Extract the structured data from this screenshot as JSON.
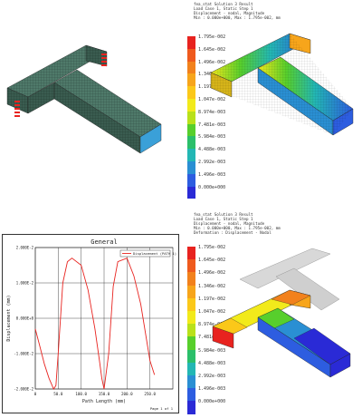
{
  "top_right_header": [
    "fea_stat   Solution 3 Result",
    "Load Case 1, Static Step 1",
    "Displacement - nodal, Magnitude",
    "Min : 0.000e+000, Max : 1.795e-002, mm"
  ],
  "bottom_right_header": [
    "fea_stat   Solution 3 Result",
    "Load Case 1, Static Step 1",
    "Displacement - nodal, Magnitude",
    "Min : 0.000e+000, Max : 1.795e-002, mm",
    "Deformation : Displacement - Nodal"
  ],
  "color_scale": {
    "labels": [
      "1.795e-002",
      "1.645e-002",
      "1.496e-002",
      "1.346e-002",
      "1.197e-002",
      "1.047e-002",
      "8.974e-003",
      "7.481e-003",
      "5.984e-003",
      "4.488e-003",
      "2.992e-003",
      "1.496e-003",
      "0.000e+000"
    ],
    "colors": [
      "#e8231f",
      "#ef5a1d",
      "#f2811c",
      "#f7a51b",
      "#fbc819",
      "#f2ea1b",
      "#b9e11a",
      "#57cf2c",
      "#2bbf6a",
      "#23b7b4",
      "#2a8fd3",
      "#2d5de0",
      "#2a2ad6"
    ]
  },
  "chart_data": {
    "type": "line",
    "title": "General",
    "xlabel": "Path Length (mm)",
    "ylabel": "Displacement (mm)",
    "legend": "Displacement (PATH 1)",
    "legend_position": "top-right",
    "xlim": [
      0,
      300
    ],
    "ylim": [
      -0.02,
      0.02
    ],
    "x_ticks": [
      "0",
      "50.0",
      "100.0",
      "150.0",
      "200.0",
      "250.0"
    ],
    "y_ticks": [
      "2.000E-2",
      "1.000E-2",
      "0.000E+0",
      "-1.000E-2",
      "-2.000E-2"
    ],
    "y_tick_values": [
      0.02,
      0.01,
      0.0,
      -0.01,
      -0.02
    ],
    "x_tick_values": [
      0,
      50,
      100,
      150,
      200,
      250
    ],
    "series": [
      {
        "name": "Displacement (PATH 1)",
        "x": [
          0,
          10,
          20,
          30,
          40,
          45,
          50,
          60,
          70,
          80,
          100,
          115,
          130,
          140,
          145,
          150,
          160,
          170,
          180,
          200,
          215,
          230,
          240,
          250,
          260
        ],
        "y": [
          -0.003,
          -0.008,
          -0.013,
          -0.017,
          -0.02,
          -0.019,
          -0.01,
          0.01,
          0.016,
          0.017,
          0.015,
          0.008,
          -0.003,
          -0.012,
          -0.017,
          -0.02,
          -0.01,
          0.009,
          0.016,
          0.017,
          0.012,
          0.004,
          -0.004,
          -0.012,
          -0.016
        ]
      }
    ],
    "page_label": "Page 1 of 1"
  }
}
